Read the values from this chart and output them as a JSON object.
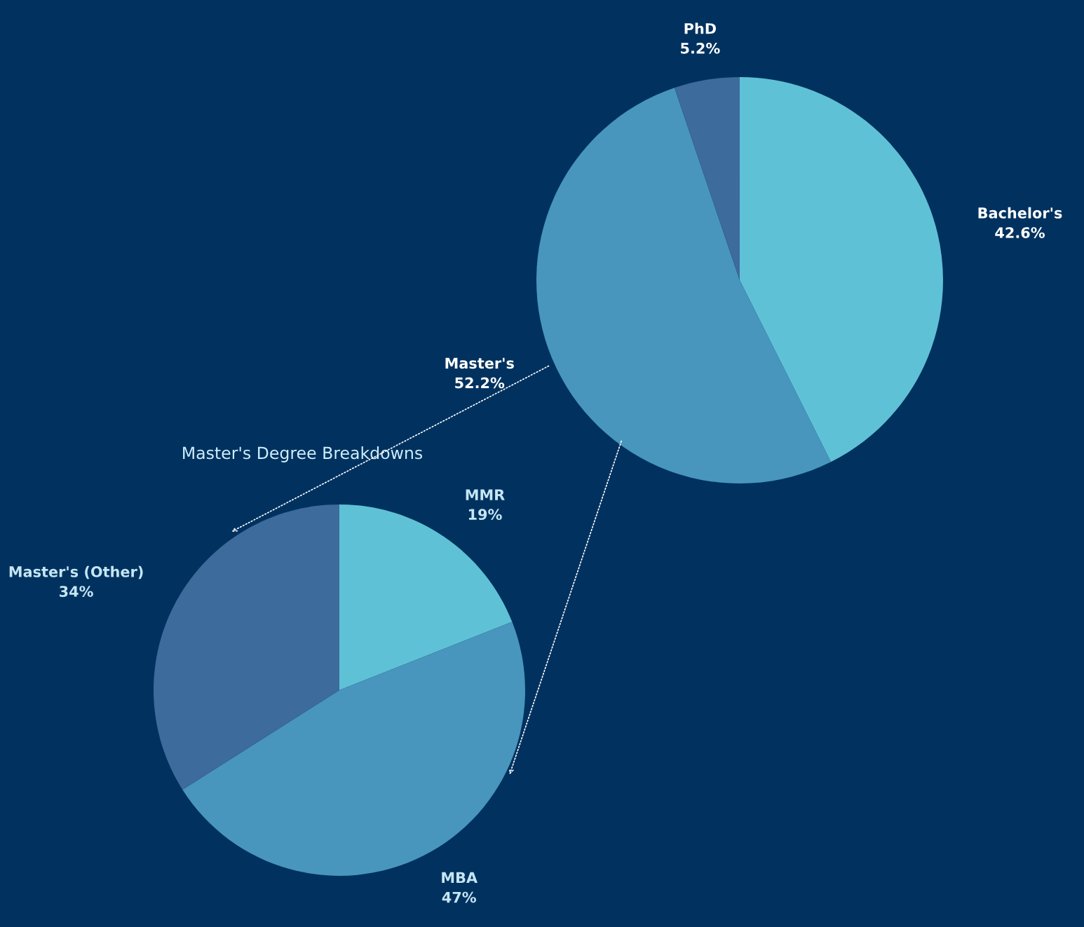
{
  "chart_data": [
    {
      "type": "pie",
      "categories": [
        "Bachelor's",
        "Master's",
        "PhD"
      ],
      "values": [
        42.6,
        52.2,
        5.2
      ],
      "value_labels": [
        "42.6%",
        "52.2%",
        "5.2%"
      ],
      "colors": [
        "#5fc1d6",
        "#4896bd",
        "#3d6b9b"
      ]
    },
    {
      "type": "pie",
      "title": "Master's Degree Breakdowns",
      "categories": [
        "MMR",
        "MBA",
        "Master's (Other)"
      ],
      "values": [
        19,
        47,
        34
      ],
      "value_labels": [
        "19%",
        "47%",
        "34%"
      ],
      "colors": [
        "#5fc1d6",
        "#4896bd",
        "#3d6b9b"
      ]
    }
  ]
}
